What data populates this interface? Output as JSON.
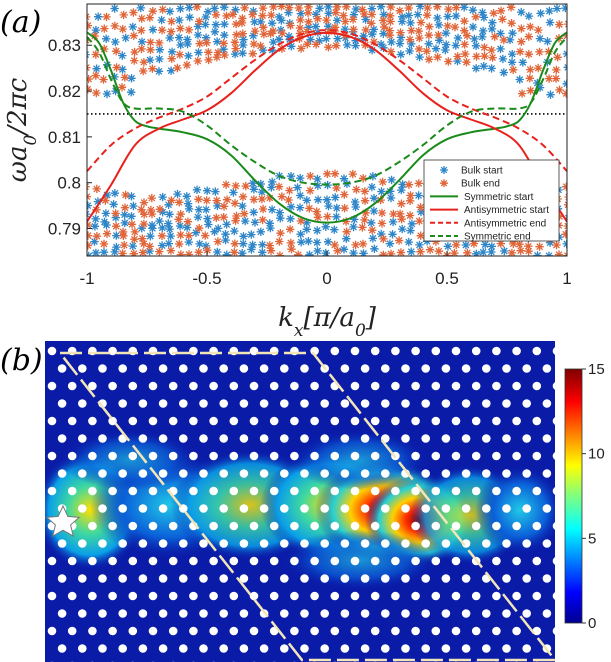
{
  "panels": {
    "a_label": "(a)",
    "b_label": "(b)"
  },
  "chart_data": {
    "type": "scatter",
    "xlabel": "k_x[π/a_0]",
    "ylabel": "ωa_0/2πc",
    "xlim": [
      -1,
      1
    ],
    "ylim": [
      0.784,
      0.839
    ],
    "x_ticks": [
      -1,
      -0.5,
      0,
      0.5,
      1
    ],
    "x_tick_labels": [
      "-1",
      "-0.5",
      "0",
      "0.5",
      "1"
    ],
    "y_ticks": [
      0.79,
      0.8,
      0.81,
      0.82,
      0.83
    ],
    "y_tick_labels": [
      "0.79",
      "0.8",
      "0.81",
      "0.82",
      "0.83"
    ],
    "reference_line": {
      "y": 0.815,
      "style": "dotted",
      "color": "#000000"
    },
    "legend": {
      "position": "lower-right"
    },
    "series": [
      {
        "name": "Bulk start",
        "kind": "marker",
        "marker": "asterisk",
        "color": "#2e86c8"
      },
      {
        "name": "Bulk end",
        "kind": "marker",
        "marker": "asterisk",
        "color": "#e0663a"
      },
      {
        "name": "Symmetric start",
        "kind": "line",
        "style": "solid",
        "color": "#1a8a1a",
        "x": [
          -1,
          -0.95,
          -0.9,
          -0.85,
          -0.8,
          -0.75,
          -0.7,
          -0.6,
          -0.5,
          -0.4,
          -0.3,
          -0.2,
          -0.1,
          0,
          0.1,
          0.2,
          0.3,
          0.4,
          0.5,
          0.6,
          0.7,
          0.75,
          0.8,
          0.85,
          0.9,
          0.95,
          1
        ],
        "y": [
          0.8328,
          0.8305,
          0.8245,
          0.8175,
          0.8135,
          0.8123,
          0.8118,
          0.811,
          0.8095,
          0.806,
          0.8005,
          0.7955,
          0.7923,
          0.7913,
          0.7923,
          0.7955,
          0.8005,
          0.806,
          0.8095,
          0.811,
          0.8118,
          0.8123,
          0.8135,
          0.8175,
          0.8245,
          0.8305,
          0.8328
        ]
      },
      {
        "name": "Antisymmetric start",
        "kind": "line",
        "style": "solid",
        "color": "#e8211c",
        "x": [
          -1,
          -0.9,
          -0.8,
          -0.7,
          -0.6,
          -0.5,
          -0.4,
          -0.3,
          -0.2,
          -0.1,
          0,
          0.1,
          0.2,
          0.3,
          0.4,
          0.5,
          0.6,
          0.7,
          0.8,
          0.9,
          1
        ],
        "y": [
          0.7915,
          0.7995,
          0.8082,
          0.8118,
          0.8138,
          0.8158,
          0.8195,
          0.8245,
          0.829,
          0.8318,
          0.8327,
          0.8318,
          0.829,
          0.8245,
          0.8195,
          0.8158,
          0.8138,
          0.8118,
          0.8082,
          0.7995,
          0.7915
        ]
      },
      {
        "name": "Antisymmetric end",
        "kind": "line",
        "style": "dashed",
        "color": "#e8211c",
        "x": [
          -1,
          -0.9,
          -0.8,
          -0.7,
          -0.6,
          -0.5,
          -0.4,
          -0.3,
          -0.2,
          -0.1,
          0,
          0.1,
          0.2,
          0.3,
          0.4,
          0.5,
          0.6,
          0.7,
          0.8,
          0.9,
          1
        ],
        "y": [
          0.8025,
          0.8082,
          0.8118,
          0.8142,
          0.8162,
          0.8188,
          0.8228,
          0.8268,
          0.8302,
          0.8325,
          0.8333,
          0.8325,
          0.8302,
          0.8268,
          0.8228,
          0.8188,
          0.8162,
          0.8142,
          0.8118,
          0.8082,
          0.8025
        ]
      },
      {
        "name": "Symmetric end",
        "kind": "line",
        "style": "dashed",
        "color": "#1a8a1a",
        "x": [
          -1,
          -0.95,
          -0.9,
          -0.85,
          -0.8,
          -0.7,
          -0.6,
          -0.5,
          -0.4,
          -0.3,
          -0.2,
          -0.1,
          0,
          0.1,
          0.2,
          0.3,
          0.4,
          0.5,
          0.6,
          0.7,
          0.8,
          0.85,
          0.9,
          0.95,
          1
        ],
        "y": [
          0.8318,
          0.8285,
          0.8225,
          0.8175,
          0.8162,
          0.8162,
          0.8155,
          0.8125,
          0.8082,
          0.8045,
          0.8015,
          0.8,
          0.7996,
          0.8,
          0.8015,
          0.8045,
          0.8082,
          0.8125,
          0.8155,
          0.8162,
          0.8162,
          0.8175,
          0.8225,
          0.8285,
          0.8318
        ]
      }
    ]
  },
  "field_map": {
    "colorbar": {
      "ticks": [
        0,
        5,
        10,
        15
      ],
      "tick_labels": [
        "0",
        "5",
        "10",
        "15"
      ],
      "min": 0,
      "max": 15
    }
  }
}
